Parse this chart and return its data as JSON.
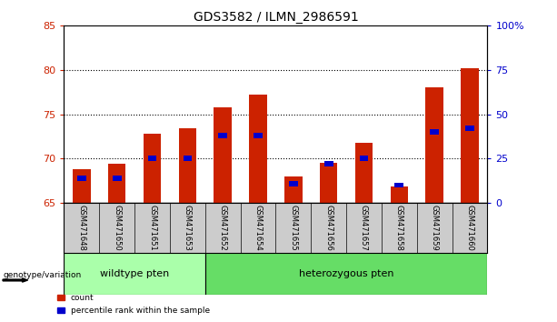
{
  "title": "GDS3582 / ILMN_2986591",
  "categories": [
    "GSM471648",
    "GSM471650",
    "GSM471651",
    "GSM471653",
    "GSM471652",
    "GSM471654",
    "GSM471655",
    "GSM471656",
    "GSM471657",
    "GSM471658",
    "GSM471659",
    "GSM471660"
  ],
  "count_values": [
    68.8,
    69.4,
    72.8,
    73.4,
    75.8,
    77.2,
    68.0,
    69.5,
    71.8,
    66.8,
    78.0,
    80.2
  ],
  "percentile_values": [
    14,
    14,
    25,
    25,
    38,
    38,
    11,
    22,
    25,
    10,
    40,
    42
  ],
  "ylim_left": [
    65,
    85
  ],
  "ylim_right": [
    0,
    100
  ],
  "yticks_left": [
    65,
    70,
    75,
    80,
    85
  ],
  "yticks_right": [
    0,
    25,
    50,
    75,
    100
  ],
  "yticklabels_right": [
    "0",
    "25",
    "50",
    "75",
    "100%"
  ],
  "bar_color": "#cc2200",
  "percentile_color": "#0000cc",
  "bar_width": 0.5,
  "grid_lines": [
    70,
    75,
    80
  ],
  "wt_count": 4,
  "wildtype_label": "wildtype pten",
  "heterozygous_label": "heterozygous pten",
  "wildtype_color": "#aaffaa",
  "heterozygous_color": "#66dd66",
  "genotype_label": "genotype/variation",
  "legend_count": "count",
  "legend_percentile": "percentile rank within the sample",
  "background_color": "#ffffff",
  "plot_bg_color": "#ffffff",
  "tick_label_bg": "#cccccc",
  "title_fontsize": 10,
  "tick_fontsize": 7
}
